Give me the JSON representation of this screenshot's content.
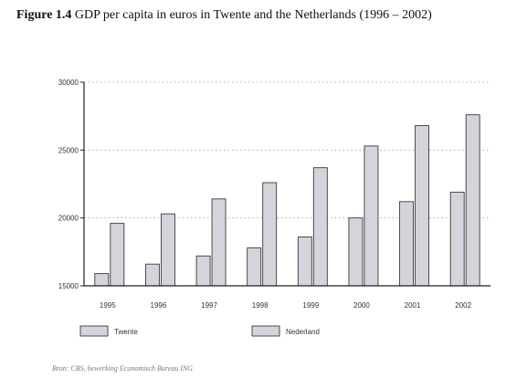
{
  "title": {
    "figure": "Figure 1.4",
    "text": "GDP per capita in euros in Twente and the Netherlands (1996 – 2002)"
  },
  "source": "Bron: CBS, bewerking Economisch Bureau ING",
  "colors": {
    "bar_fill": "#d3d4dc",
    "bar_stroke": "#3a3a3a",
    "axis": "#222222",
    "grid": "#9a9a9a"
  },
  "chart_data": {
    "type": "bar",
    "title": "GDP per capita in euros in Twente and the Netherlands (1996 – 2002)",
    "xlabel": "",
    "ylabel": "",
    "categories": [
      "1995",
      "1996",
      "1997",
      "1998",
      "1999",
      "2000",
      "2001",
      "2002"
    ],
    "series": [
      {
        "name": "Twente",
        "values": [
          15900,
          16600,
          17200,
          17800,
          18600,
          20000,
          21200,
          21900
        ]
      },
      {
        "name": "Nederland",
        "values": [
          19600,
          20300,
          21400,
          22600,
          23700,
          25300,
          26800,
          27600
        ]
      }
    ],
    "ylim": [
      15000,
      30000
    ],
    "yticks": [
      "15000",
      "20000",
      "25000",
      "30000"
    ],
    "grid": "horizontal dotted",
    "legend_position": "bottom"
  }
}
